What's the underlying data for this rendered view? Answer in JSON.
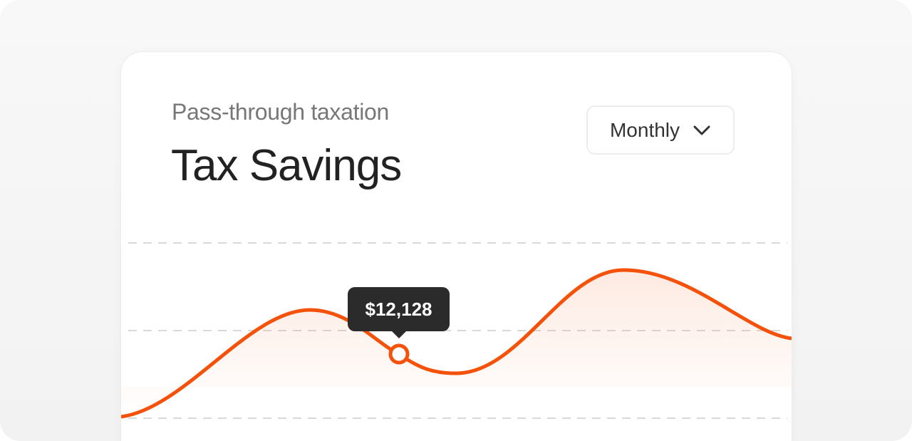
{
  "card": {
    "subtitle": "Pass-through taxation",
    "title": "Tax Savings",
    "period_select": {
      "selected": "Monthly",
      "icon": "chevron-down-icon"
    }
  },
  "chart_data": {
    "type": "area",
    "grid": true,
    "line_color": "#f4520a",
    "highlight": {
      "label": "$12,128",
      "value": 12128
    }
  }
}
